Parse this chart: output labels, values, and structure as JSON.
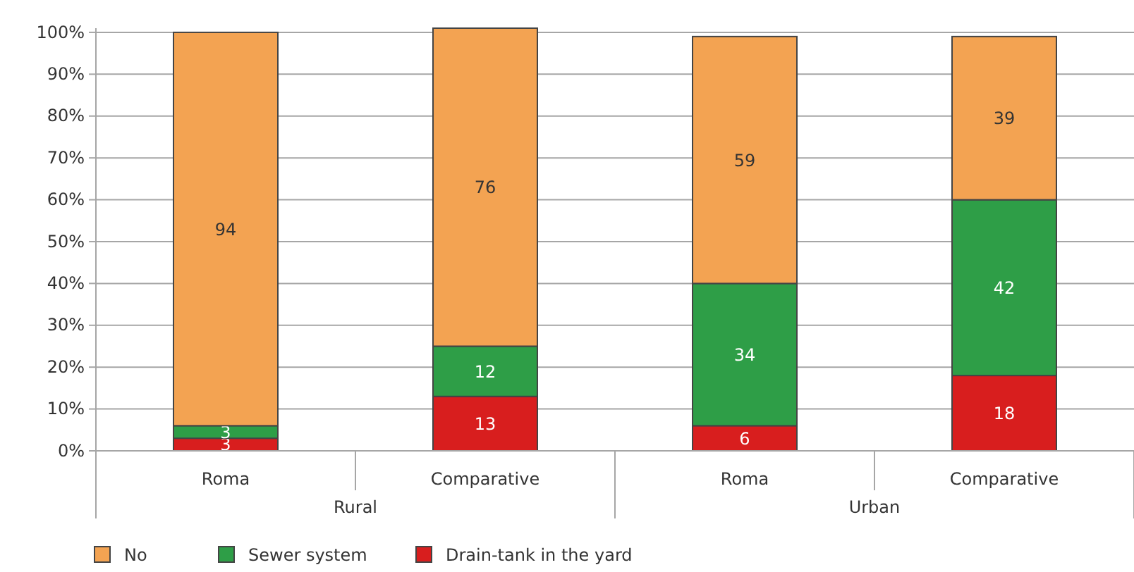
{
  "chart_data": {
    "type": "bar",
    "stacked": true,
    "categories": [
      "Roma",
      "Comparative",
      "Roma",
      "Comparative"
    ],
    "series": [
      {
        "name": "Drain-tank in the yard",
        "color": "#d81e1e",
        "values": [
          3,
          13,
          6,
          18
        ]
      },
      {
        "name": "Sewer system",
        "color": "#2e9e47",
        "values": [
          3,
          12,
          34,
          42
        ]
      },
      {
        "name": "No",
        "color": "#f3a352",
        "values": [
          94,
          76,
          59,
          39
        ]
      }
    ],
    "ylim": [
      0,
      101
    ],
    "yticks": [
      {
        "value": 0,
        "label": "0%"
      },
      {
        "value": 10,
        "label": "10%"
      },
      {
        "value": 20,
        "label": "20%"
      },
      {
        "value": 30,
        "label": "30%"
      },
      {
        "value": 40,
        "label": "40%"
      },
      {
        "value": 50,
        "label": "50%"
      },
      {
        "value": 60,
        "label": "60%"
      },
      {
        "value": 70,
        "label": "70%"
      },
      {
        "value": 80,
        "label": "80%"
      },
      {
        "value": 90,
        "label": "90%"
      },
      {
        "value": 100,
        "label": "100%"
      }
    ],
    "grid": "y",
    "data_labels": true,
    "legend": "bottom left",
    "annotations": [
      "Rural",
      "Urban"
    ]
  }
}
